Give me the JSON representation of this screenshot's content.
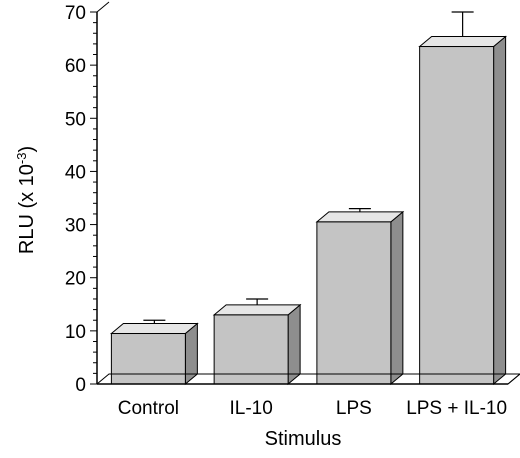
{
  "chart_data": {
    "type": "bar",
    "title": "",
    "xlabel": "Stimulus",
    "ylabel": "RLU (x 10",
    "ylabel_superscript": "-3",
    "ylabel_close": ")",
    "categories": [
      "Control",
      "IL-10",
      "LPS",
      "LPS + IL-10"
    ],
    "values": [
      9.5,
      13,
      30.5,
      63.5
    ],
    "errors": [
      2.5,
      3,
      2.5,
      6.5
    ],
    "ylim": [
      0,
      70
    ],
    "yticks": [
      "0",
      "10",
      "20",
      "30",
      "40",
      "50",
      "60",
      "70"
    ],
    "grid": false,
    "legend": "none",
    "style": "3d-gray-bars"
  },
  "colors": {
    "bar_front": "#c4c4c4",
    "bar_top": "#e6e6e6",
    "bar_side": "#8e8e8e",
    "axis": "#000000"
  }
}
